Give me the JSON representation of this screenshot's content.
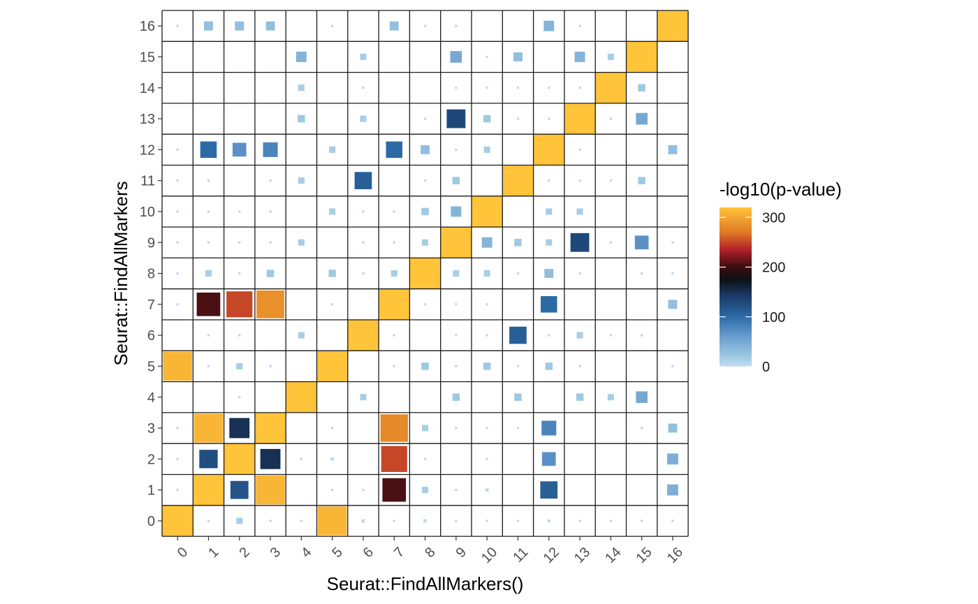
{
  "chart_data": {
    "type": "heatmap",
    "title": "",
    "xlabel": "Seurat::FindAllMarkers()",
    "ylabel": "Seurat::FindAllMarkers",
    "x_categories": [
      "0",
      "1",
      "2",
      "3",
      "4",
      "5",
      "6",
      "7",
      "8",
      "9",
      "10",
      "11",
      "12",
      "13",
      "14",
      "15",
      "16"
    ],
    "y_categories": [
      "0",
      "1",
      "2",
      "3",
      "4",
      "5",
      "6",
      "7",
      "8",
      "9",
      "10",
      "11",
      "12",
      "13",
      "14",
      "15",
      "16"
    ],
    "value_name": "-log10(p-value)",
    "value_range": [
      0,
      320
    ],
    "legend": {
      "title": "-log10(p-value)",
      "ticks": [
        0,
        100,
        200,
        300
      ],
      "placement": "right",
      "colors": [
        {
          "value": 0,
          "color": "#c6dbef"
        },
        {
          "value": 20,
          "color": "#9ecae1"
        },
        {
          "value": 60,
          "color": "#6a9dcf"
        },
        {
          "value": 100,
          "color": "#2c6aa6"
        },
        {
          "value": 140,
          "color": "#1b3d6b"
        },
        {
          "value": 175,
          "color": "#0d1117"
        },
        {
          "value": 200,
          "color": "#3a0d10"
        },
        {
          "value": 235,
          "color": "#b3202a"
        },
        {
          "value": 270,
          "color": "#e07a25"
        },
        {
          "value": 320,
          "color": "#ffc43a"
        }
      ]
    },
    "diagonal_value": 320,
    "cells": [
      {
        "x": "0",
        "y": "0",
        "value": 320
      },
      {
        "x": "1",
        "y": "1",
        "value": 320
      },
      {
        "x": "2",
        "y": "2",
        "value": 320
      },
      {
        "x": "3",
        "y": "3",
        "value": 320
      },
      {
        "x": "4",
        "y": "4",
        "value": 320
      },
      {
        "x": "5",
        "y": "5",
        "value": 320
      },
      {
        "x": "6",
        "y": "6",
        "value": 320
      },
      {
        "x": "7",
        "y": "7",
        "value": 320
      },
      {
        "x": "8",
        "y": "8",
        "value": 320
      },
      {
        "x": "9",
        "y": "9",
        "value": 320
      },
      {
        "x": "10",
        "y": "10",
        "value": 320
      },
      {
        "x": "11",
        "y": "11",
        "value": 320
      },
      {
        "x": "12",
        "y": "12",
        "value": 320
      },
      {
        "x": "13",
        "y": "13",
        "value": 320
      },
      {
        "x": "14",
        "y": "14",
        "value": 320
      },
      {
        "x": "15",
        "y": "15",
        "value": 320
      },
      {
        "x": "16",
        "y": "16",
        "value": 320
      },
      {
        "x": "5",
        "y": "0",
        "value": 310
      },
      {
        "x": "2",
        "y": "0",
        "value": 15
      },
      {
        "x": "1",
        "y": "0",
        "value": 2
      },
      {
        "x": "3",
        "y": "0",
        "value": 2
      },
      {
        "x": "4",
        "y": "0",
        "value": 2
      },
      {
        "x": "6",
        "y": "0",
        "value": 4
      },
      {
        "x": "7",
        "y": "0",
        "value": 2
      },
      {
        "x": "8",
        "y": "0",
        "value": 4
      },
      {
        "x": "9",
        "y": "0",
        "value": 2
      },
      {
        "x": "10",
        "y": "0",
        "value": 2
      },
      {
        "x": "11",
        "y": "0",
        "value": 2
      },
      {
        "x": "12",
        "y": "0",
        "value": 3
      },
      {
        "x": "13",
        "y": "0",
        "value": 2
      },
      {
        "x": "14",
        "y": "0",
        "value": 2
      },
      {
        "x": "15",
        "y": "0",
        "value": 2
      },
      {
        "x": "16",
        "y": "0",
        "value": 2
      },
      {
        "x": "0",
        "y": "1",
        "value": 2
      },
      {
        "x": "2",
        "y": "1",
        "value": 120
      },
      {
        "x": "3",
        "y": "1",
        "value": 310
      },
      {
        "x": "5",
        "y": "1",
        "value": 2
      },
      {
        "x": "6",
        "y": "1",
        "value": 2
      },
      {
        "x": "7",
        "y": "1",
        "value": 205
      },
      {
        "x": "8",
        "y": "1",
        "value": 15
      },
      {
        "x": "9",
        "y": "1",
        "value": 2
      },
      {
        "x": "10",
        "y": "1",
        "value": 4
      },
      {
        "x": "12",
        "y": "1",
        "value": 110
      },
      {
        "x": "16",
        "y": "1",
        "value": 45
      },
      {
        "x": "0",
        "y": "2",
        "value": 2
      },
      {
        "x": "1",
        "y": "2",
        "value": 125
      },
      {
        "x": "3",
        "y": "2",
        "value": 150
      },
      {
        "x": "4",
        "y": "2",
        "value": 2
      },
      {
        "x": "5",
        "y": "2",
        "value": 4
      },
      {
        "x": "7",
        "y": "2",
        "value": 250
      },
      {
        "x": "8",
        "y": "2",
        "value": 2
      },
      {
        "x": "10",
        "y": "2",
        "value": 2
      },
      {
        "x": "12",
        "y": "2",
        "value": 70
      },
      {
        "x": "16",
        "y": "2",
        "value": 45
      },
      {
        "x": "0",
        "y": "3",
        "value": 2
      },
      {
        "x": "1",
        "y": "3",
        "value": 310
      },
      {
        "x": "2",
        "y": "3",
        "value": 150
      },
      {
        "x": "5",
        "y": "3",
        "value": 2
      },
      {
        "x": "7",
        "y": "3",
        "value": 280
      },
      {
        "x": "8",
        "y": "3",
        "value": 15
      },
      {
        "x": "9",
        "y": "3",
        "value": 2
      },
      {
        "x": "10",
        "y": "3",
        "value": 2
      },
      {
        "x": "11",
        "y": "3",
        "value": 2
      },
      {
        "x": "12",
        "y": "3",
        "value": 80
      },
      {
        "x": "15",
        "y": "3",
        "value": 2
      },
      {
        "x": "16",
        "y": "3",
        "value": 30
      },
      {
        "x": "2",
        "y": "4",
        "value": 2
      },
      {
        "x": "6",
        "y": "4",
        "value": 15
      },
      {
        "x": "9",
        "y": "4",
        "value": 20
      },
      {
        "x": "11",
        "y": "4",
        "value": 20
      },
      {
        "x": "13",
        "y": "4",
        "value": 20
      },
      {
        "x": "14",
        "y": "4",
        "value": 15
      },
      {
        "x": "15",
        "y": "4",
        "value": 50
      },
      {
        "x": "0",
        "y": "5",
        "value": 310
      },
      {
        "x": "1",
        "y": "5",
        "value": 2
      },
      {
        "x": "2",
        "y": "5",
        "value": 15
      },
      {
        "x": "3",
        "y": "5",
        "value": 2
      },
      {
        "x": "7",
        "y": "5",
        "value": 2
      },
      {
        "x": "8",
        "y": "5",
        "value": 20
      },
      {
        "x": "9",
        "y": "5",
        "value": 2
      },
      {
        "x": "10",
        "y": "5",
        "value": 20
      },
      {
        "x": "11",
        "y": "5",
        "value": 2
      },
      {
        "x": "12",
        "y": "5",
        "value": 20
      },
      {
        "x": "13",
        "y": "5",
        "value": 2
      },
      {
        "x": "16",
        "y": "5",
        "value": 2
      },
      {
        "x": "1",
        "y": "6",
        "value": 2
      },
      {
        "x": "2",
        "y": "6",
        "value": 2
      },
      {
        "x": "4",
        "y": "6",
        "value": 15
      },
      {
        "x": "7",
        "y": "6",
        "value": 2
      },
      {
        "x": "9",
        "y": "6",
        "value": 2
      },
      {
        "x": "10",
        "y": "6",
        "value": 2
      },
      {
        "x": "11",
        "y": "6",
        "value": 110
      },
      {
        "x": "12",
        "y": "6",
        "value": 2
      },
      {
        "x": "13",
        "y": "6",
        "value": 15
      },
      {
        "x": "14",
        "y": "6",
        "value": 2
      },
      {
        "x": "15",
        "y": "6",
        "value": 2
      },
      {
        "x": "0",
        "y": "7",
        "value": 2
      },
      {
        "x": "1",
        "y": "7",
        "value": 205
      },
      {
        "x": "2",
        "y": "7",
        "value": 250
      },
      {
        "x": "3",
        "y": "7",
        "value": 285
      },
      {
        "x": "5",
        "y": "7",
        "value": 2
      },
      {
        "x": "8",
        "y": "7",
        "value": 2
      },
      {
        "x": "9",
        "y": "7",
        "value": 2
      },
      {
        "x": "10",
        "y": "7",
        "value": 2
      },
      {
        "x": "12",
        "y": "7",
        "value": 100
      },
      {
        "x": "16",
        "y": "7",
        "value": 30
      },
      {
        "x": "0",
        "y": "8",
        "value": 2
      },
      {
        "x": "1",
        "y": "8",
        "value": 15
      },
      {
        "x": "2",
        "y": "8",
        "value": 2
      },
      {
        "x": "3",
        "y": "8",
        "value": 20
      },
      {
        "x": "5",
        "y": "8",
        "value": 20
      },
      {
        "x": "6",
        "y": "8",
        "value": 2
      },
      {
        "x": "7",
        "y": "8",
        "value": 15
      },
      {
        "x": "9",
        "y": "8",
        "value": 15
      },
      {
        "x": "10",
        "y": "8",
        "value": 15
      },
      {
        "x": "11",
        "y": "8",
        "value": 2
      },
      {
        "x": "12",
        "y": "8",
        "value": 30
      },
      {
        "x": "13",
        "y": "8",
        "value": 2
      },
      {
        "x": "15",
        "y": "8",
        "value": 2
      },
      {
        "x": "16",
        "y": "8",
        "value": 2
      },
      {
        "x": "0",
        "y": "9",
        "value": 2
      },
      {
        "x": "1",
        "y": "9",
        "value": 2
      },
      {
        "x": "2",
        "y": "9",
        "value": 2
      },
      {
        "x": "3",
        "y": "9",
        "value": 2
      },
      {
        "x": "4",
        "y": "9",
        "value": 15
      },
      {
        "x": "6",
        "y": "9",
        "value": 2
      },
      {
        "x": "7",
        "y": "9",
        "value": 2
      },
      {
        "x": "8",
        "y": "9",
        "value": 15
      },
      {
        "x": "10",
        "y": "9",
        "value": 40
      },
      {
        "x": "11",
        "y": "9",
        "value": 20
      },
      {
        "x": "12",
        "y": "9",
        "value": 15
      },
      {
        "x": "13",
        "y": "9",
        "value": 130
      },
      {
        "x": "14",
        "y": "9",
        "value": 2
      },
      {
        "x": "15",
        "y": "9",
        "value": 70
      },
      {
        "x": "16",
        "y": "9",
        "value": 2
      },
      {
        "x": "0",
        "y": "10",
        "value": 2
      },
      {
        "x": "1",
        "y": "10",
        "value": 2
      },
      {
        "x": "2",
        "y": "10",
        "value": 2
      },
      {
        "x": "3",
        "y": "10",
        "value": 2
      },
      {
        "x": "5",
        "y": "10",
        "value": 15
      },
      {
        "x": "6",
        "y": "10",
        "value": 2
      },
      {
        "x": "7",
        "y": "10",
        "value": 2
      },
      {
        "x": "8",
        "y": "10",
        "value": 20
      },
      {
        "x": "9",
        "y": "10",
        "value": 40
      },
      {
        "x": "12",
        "y": "10",
        "value": 15
      },
      {
        "x": "13",
        "y": "10",
        "value": 15
      },
      {
        "x": "0",
        "y": "11",
        "value": 2
      },
      {
        "x": "1",
        "y": "11",
        "value": 2
      },
      {
        "x": "3",
        "y": "11",
        "value": 2
      },
      {
        "x": "4",
        "y": "11",
        "value": 15
      },
      {
        "x": "6",
        "y": "11",
        "value": 110
      },
      {
        "x": "8",
        "y": "11",
        "value": 2
      },
      {
        "x": "9",
        "y": "11",
        "value": 20
      },
      {
        "x": "12",
        "y": "11",
        "value": 2
      },
      {
        "x": "13",
        "y": "11",
        "value": 2
      },
      {
        "x": "14",
        "y": "11",
        "value": 2
      },
      {
        "x": "15",
        "y": "11",
        "value": 20
      },
      {
        "x": "0",
        "y": "12",
        "value": 2
      },
      {
        "x": "1",
        "y": "12",
        "value": 100
      },
      {
        "x": "2",
        "y": "12",
        "value": 70
      },
      {
        "x": "3",
        "y": "12",
        "value": 80
      },
      {
        "x": "5",
        "y": "12",
        "value": 15
      },
      {
        "x": "7",
        "y": "12",
        "value": 100
      },
      {
        "x": "8",
        "y": "12",
        "value": 30
      },
      {
        "x": "9",
        "y": "12",
        "value": 2
      },
      {
        "x": "10",
        "y": "12",
        "value": 15
      },
      {
        "x": "13",
        "y": "12",
        "value": 2
      },
      {
        "x": "16",
        "y": "12",
        "value": 30
      },
      {
        "x": "4",
        "y": "13",
        "value": 20
      },
      {
        "x": "6",
        "y": "13",
        "value": 15
      },
      {
        "x": "8",
        "y": "13",
        "value": 2
      },
      {
        "x": "9",
        "y": "13",
        "value": 130
      },
      {
        "x": "10",
        "y": "13",
        "value": 20
      },
      {
        "x": "11",
        "y": "13",
        "value": 2
      },
      {
        "x": "12",
        "y": "13",
        "value": 2
      },
      {
        "x": "14",
        "y": "13",
        "value": 2
      },
      {
        "x": "15",
        "y": "13",
        "value": 50
      },
      {
        "x": "4",
        "y": "14",
        "value": 15
      },
      {
        "x": "6",
        "y": "14",
        "value": 2
      },
      {
        "x": "9",
        "y": "14",
        "value": 2
      },
      {
        "x": "10",
        "y": "14",
        "value": 2
      },
      {
        "x": "11",
        "y": "14",
        "value": 2
      },
      {
        "x": "12",
        "y": "14",
        "value": 2
      },
      {
        "x": "13",
        "y": "14",
        "value": 2
      },
      {
        "x": "15",
        "y": "14",
        "value": 20
      },
      {
        "x": "4",
        "y": "15",
        "value": 40
      },
      {
        "x": "6",
        "y": "15",
        "value": 15
      },
      {
        "x": "9",
        "y": "15",
        "value": 50
      },
      {
        "x": "10",
        "y": "15",
        "value": 2
      },
      {
        "x": "11",
        "y": "15",
        "value": 30
      },
      {
        "x": "13",
        "y": "15",
        "value": 40
      },
      {
        "x": "14",
        "y": "15",
        "value": 15
      },
      {
        "x": "0",
        "y": "16",
        "value": 2
      },
      {
        "x": "1",
        "y": "16",
        "value": 30
      },
      {
        "x": "2",
        "y": "16",
        "value": 30
      },
      {
        "x": "3",
        "y": "16",
        "value": 30
      },
      {
        "x": "5",
        "y": "16",
        "value": 2
      },
      {
        "x": "7",
        "y": "16",
        "value": 30
      },
      {
        "x": "8",
        "y": "16",
        "value": 2
      },
      {
        "x": "9",
        "y": "16",
        "value": 2
      },
      {
        "x": "12",
        "y": "16",
        "value": 40
      },
      {
        "x": "13",
        "y": "16",
        "value": 2
      }
    ],
    "grid": true
  }
}
